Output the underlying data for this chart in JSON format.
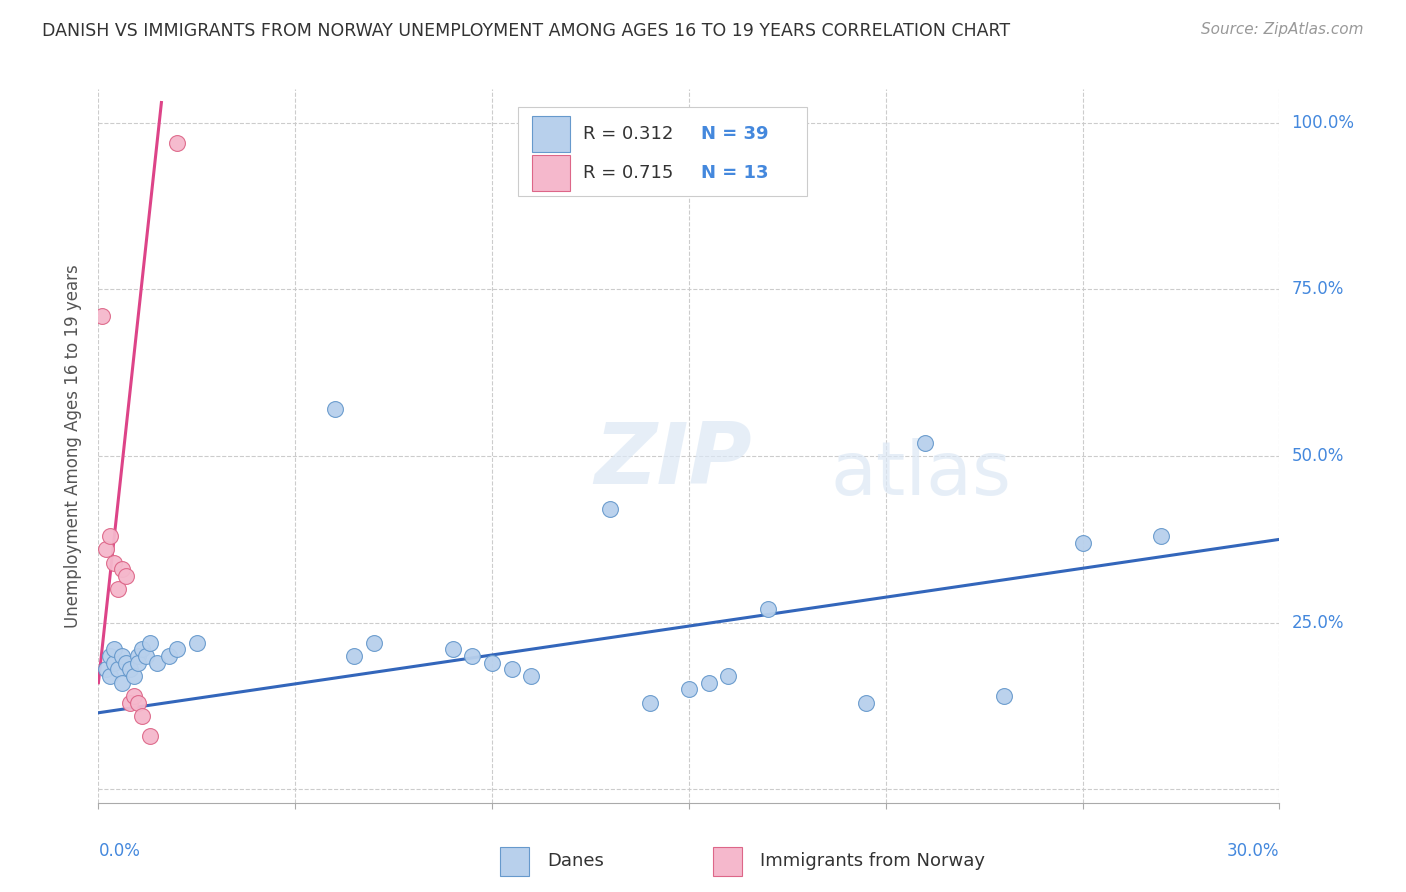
{
  "title": "DANISH VS IMMIGRANTS FROM NORWAY UNEMPLOYMENT AMONG AGES 16 TO 19 YEARS CORRELATION CHART",
  "source": "Source: ZipAtlas.com",
  "ylabel": "Unemployment Among Ages 16 to 19 years",
  "xlim": [
    0.0,
    0.3
  ],
  "ylim": [
    -0.02,
    1.05
  ],
  "yticks": [
    0.0,
    0.25,
    0.5,
    0.75,
    1.0
  ],
  "ytick_labels": [
    "",
    "25.0%",
    "50.0%",
    "75.0%",
    "100.0%"
  ],
  "blue_color": "#b8d0ec",
  "pink_color": "#f5b8cc",
  "blue_edge_color": "#6699cc",
  "pink_edge_color": "#dd6688",
  "blue_line_color": "#3366bb",
  "pink_line_color": "#dd4488",
  "legend_text_color": "#4488dd",
  "tick_label_color": "#4488dd",
  "danes_x": [
    0.002,
    0.003,
    0.003,
    0.004,
    0.004,
    0.005,
    0.006,
    0.006,
    0.007,
    0.008,
    0.009,
    0.01,
    0.01,
    0.011,
    0.012,
    0.013,
    0.015,
    0.018,
    0.02,
    0.025,
    0.06,
    0.065,
    0.07,
    0.09,
    0.095,
    0.1,
    0.105,
    0.11,
    0.13,
    0.14,
    0.15,
    0.155,
    0.16,
    0.17,
    0.195,
    0.21,
    0.23,
    0.25,
    0.27
  ],
  "danes_y": [
    0.18,
    0.2,
    0.17,
    0.19,
    0.21,
    0.18,
    0.2,
    0.16,
    0.19,
    0.18,
    0.17,
    0.2,
    0.19,
    0.21,
    0.2,
    0.22,
    0.19,
    0.2,
    0.21,
    0.22,
    0.57,
    0.2,
    0.22,
    0.21,
    0.2,
    0.19,
    0.18,
    0.17,
    0.42,
    0.13,
    0.15,
    0.16,
    0.17,
    0.27,
    0.13,
    0.52,
    0.14,
    0.37,
    0.38
  ],
  "norway_x": [
    0.001,
    0.002,
    0.003,
    0.004,
    0.005,
    0.006,
    0.007,
    0.008,
    0.009,
    0.01,
    0.011,
    0.013,
    0.02
  ],
  "norway_y": [
    0.71,
    0.36,
    0.38,
    0.34,
    0.3,
    0.33,
    0.32,
    0.13,
    0.14,
    0.13,
    0.11,
    0.08,
    0.97
  ],
  "blue_trend_x0": 0.0,
  "blue_trend_y0": 0.115,
  "blue_trend_x1": 0.3,
  "blue_trend_y1": 0.375,
  "pink_trend_x0": 0.0,
  "pink_trend_y0": 0.16,
  "pink_trend_x1": 0.016,
  "pink_trend_y1": 1.03,
  "watermark_zip": "ZIP",
  "watermark_atlas": "atlas",
  "xtick_positions": [
    0.0,
    0.05,
    0.1,
    0.15,
    0.2,
    0.25,
    0.3
  ],
  "grid_color": "#cccccc",
  "legend_R1": "R = 0.312",
  "legend_N1": "N = 39",
  "legend_R2": "R = 0.715",
  "legend_N2": "N = 13"
}
